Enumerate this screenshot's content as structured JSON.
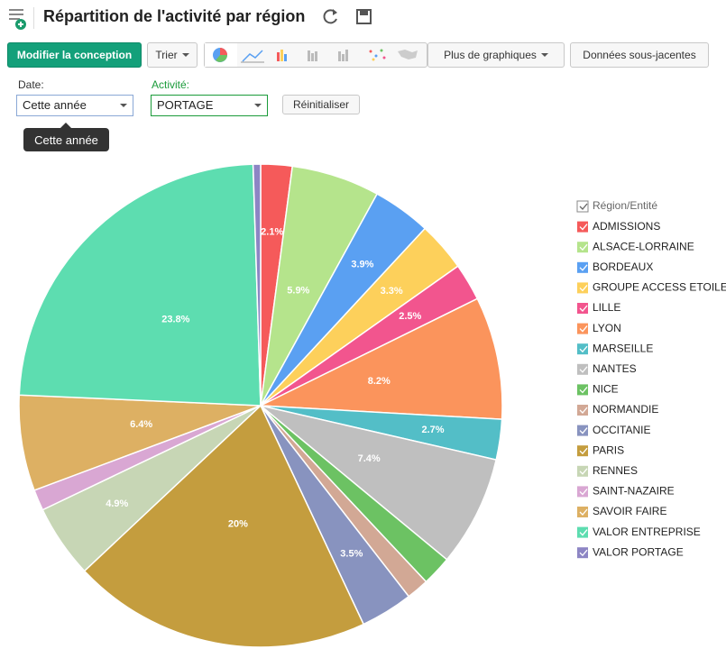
{
  "header": {
    "title": "Répartition de l'activité par région"
  },
  "toolbar": {
    "edit": "Modifier la conception",
    "sort": "Trier",
    "more_charts": "Plus de graphiques",
    "underlying": "Données sous-jacentes"
  },
  "filters": {
    "date_label": "Date:",
    "date_value": "Cette année",
    "activity_label": "Activité:",
    "activity_value": "PORTAGE",
    "reset": "Réinitialiser",
    "tooltip": "Cette année"
  },
  "chart_data": {
    "type": "pie",
    "legend_title": "Région/Entité",
    "legend": "right",
    "categories": [
      "ADMISSIONS",
      "ALSACE-LORRAINE",
      "BORDEAUX",
      "GROUPE ACCESS ETOILE",
      "LILLE",
      "LYON",
      "MARSEILLE",
      "NANTES",
      "NICE",
      "NORMANDIE",
      "OCCITANIE",
      "PARIS",
      "RENNES",
      "SAINT-NAZAIRE",
      "SAVOIR FAIRE",
      "VALOR ENTREPRISE",
      "VALOR PORTAGE"
    ],
    "values": [
      2.1,
      5.9,
      3.9,
      3.3,
      2.5,
      8.2,
      2.7,
      7.4,
      2.0,
      1.5,
      3.5,
      20,
      4.9,
      1.4,
      6.4,
      23.8,
      0.5
    ],
    "value_labels": [
      "2.1%",
      "5.9%",
      "3.9%",
      "3.3%",
      "2.5%",
      "8.2%",
      "2.7%",
      "7.4%",
      null,
      null,
      "3.5%",
      "20%",
      "4.9%",
      null,
      "6.4%",
      "23.8%",
      null
    ],
    "colors": [
      "#f55a5a",
      "#b5e48c",
      "#5aa0f2",
      "#fdd05b",
      "#f2558e",
      "#fb945c",
      "#53bec7",
      "#bfbfbf",
      "#6cc263",
      "#d2a895",
      "#8893bf",
      "#c49d3e",
      "#c7d6b5",
      "#d9a7d3",
      "#ddb063",
      "#5dddb0",
      "#8d85c4"
    ]
  }
}
